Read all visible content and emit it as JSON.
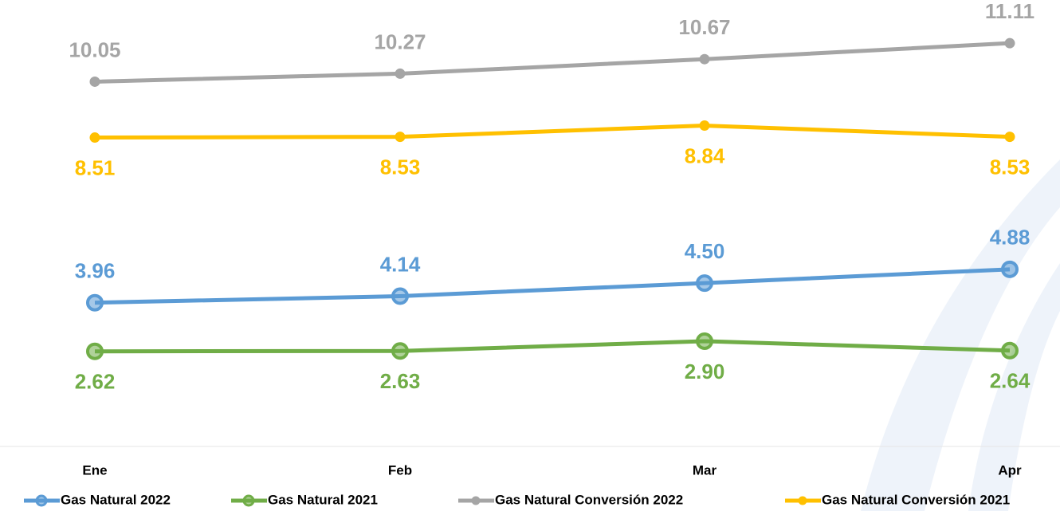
{
  "chart_data": {
    "type": "line",
    "categories": [
      "Ene",
      "Feb",
      "Mar",
      "Apr"
    ],
    "ylim": [
      0,
      12.3
    ],
    "series": [
      {
        "name": "Gas Natural 2022",
        "color": "#5b9bd5",
        "marker": "ring",
        "label_position": "above",
        "values": [
          3.96,
          4.14,
          4.5,
          4.88
        ],
        "value_labels": [
          "3.96",
          "4.14",
          "4.50",
          "4.88"
        ]
      },
      {
        "name": "Gas Natural 2021",
        "color": "#70ad47",
        "marker": "ring",
        "label_position": "below",
        "values": [
          2.62,
          2.63,
          2.9,
          2.64
        ],
        "value_labels": [
          "2.62",
          "2.63",
          "2.90",
          "2.64"
        ]
      },
      {
        "name": "Gas Natural Conversión 2022",
        "color": "#a5a5a5",
        "marker": "dot",
        "label_position": "above",
        "values": [
          10.05,
          10.27,
          10.67,
          11.11
        ],
        "value_labels": [
          "10.05",
          "10.27",
          "10.67",
          "11.11"
        ]
      },
      {
        "name": "Gas Natural Conversión 2021",
        "color": "#ffc000",
        "marker": "dot",
        "label_position": "below",
        "values": [
          8.51,
          8.53,
          8.84,
          8.53
        ],
        "value_labels": [
          "8.51",
          "8.53",
          "8.84",
          "8.53"
        ]
      }
    ],
    "legend": "bottom"
  }
}
